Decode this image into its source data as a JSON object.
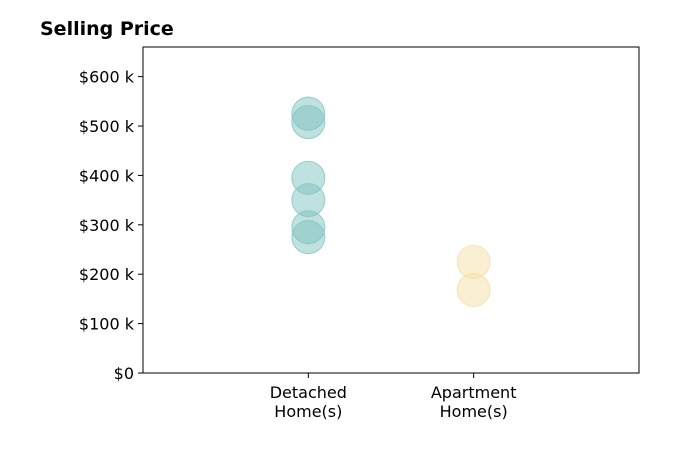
{
  "chart_data": {
    "type": "scatter",
    "title": "Selling Price",
    "xlabel": "",
    "ylabel": "",
    "categories": [
      [
        "Detached",
        "Home(s)"
      ],
      [
        "Apartment",
        "Home(s)"
      ]
    ],
    "series": [
      {
        "category_index": 0,
        "color": "#7fc4c0",
        "values": [
          525000,
          508000,
          395000,
          350000,
          295000,
          275000
        ]
      },
      {
        "category_index": 1,
        "color": "#f5dfa6",
        "values": [
          225000,
          168000
        ]
      }
    ],
    "yticks": [
      0,
      100000,
      200000,
      300000,
      400000,
      500000,
      600000
    ],
    "ytick_labels": [
      "$0",
      "$100 k",
      "$200 k",
      "$300 k",
      "$400 k",
      "$500 k",
      "$600 k"
    ],
    "ylim": [
      0,
      660000
    ],
    "xlim": [
      -1,
      2
    ],
    "grid": false
  }
}
